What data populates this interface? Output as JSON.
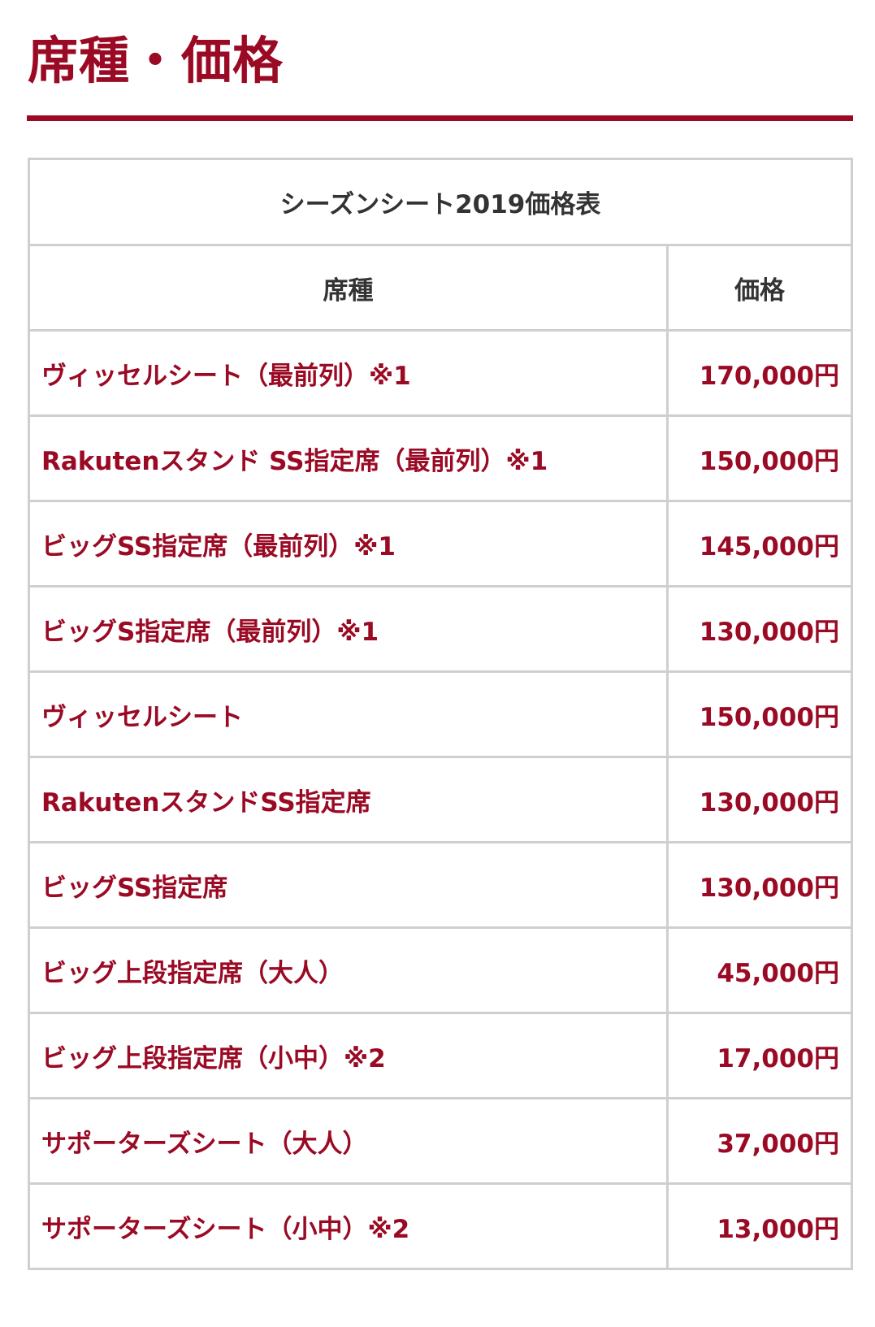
{
  "heading": "席種・価格",
  "table": {
    "caption": "シーズンシート2019価格表",
    "headers": [
      "席種",
      "価格"
    ],
    "rows": [
      {
        "seat": "ヴィッセルシート（最前列）※1",
        "price": "170,000円"
      },
      {
        "seat": "Rakutenスタンド SS指定席（最前列）※1",
        "price": "150,000円"
      },
      {
        "seat": "ビッグSS指定席（最前列）※1",
        "price": "145,000円"
      },
      {
        "seat": "ビッグS指定席（最前列）※1",
        "price": "130,000円"
      },
      {
        "seat": "ヴィッセルシート",
        "price": "150,000円"
      },
      {
        "seat": "RakutenスタンドSS指定席",
        "price": "130,000円"
      },
      {
        "seat": "ビッグSS指定席",
        "price": "130,000円"
      },
      {
        "seat": "ビッグ上段指定席（大人）",
        "price": "45,000円"
      },
      {
        "seat": "ビッグ上段指定席（小中）※2",
        "price": "17,000円"
      },
      {
        "seat": "サポーターズシート（大人）",
        "price": "37,000円"
      },
      {
        "seat": "サポーターズシート（小中）※2",
        "price": "13,000円"
      }
    ]
  },
  "colors": {
    "accent": "#9b0a24",
    "border": "#cfcfcf",
    "header_text": "#333333"
  }
}
